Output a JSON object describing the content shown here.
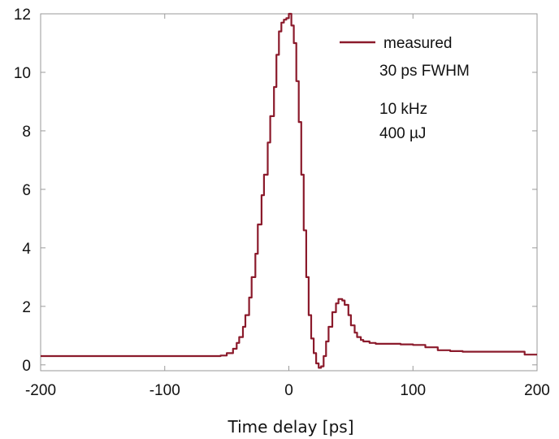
{
  "chart_data": {
    "type": "line",
    "xlabel": "Time delay [ps]",
    "ylabel": "",
    "xlim": [
      -200,
      200
    ],
    "ylim": [
      -0.2,
      12
    ],
    "xticks": [
      -200,
      -100,
      0,
      100,
      200
    ],
    "yticks": [
      0,
      2,
      4,
      6,
      8,
      10,
      12
    ],
    "grid": false,
    "legend_position": "top-right",
    "line_color": "#8B1A2B",
    "annotations": [
      "30 ps FWHM",
      "10 kHz",
      "400 µJ"
    ],
    "series": [
      {
        "name": "measured",
        "x": [
          -200,
          -150,
          -100,
          -70,
          -60,
          -55,
          -50,
          -45,
          -42,
          -40,
          -37,
          -35,
          -32,
          -30,
          -27,
          -25,
          -22,
          -20,
          -17,
          -15,
          -12,
          -10,
          -8,
          -6,
          -4,
          -2,
          0,
          2,
          4,
          6,
          8,
          10,
          12,
          14,
          16,
          18,
          20,
          22,
          24,
          26,
          28,
          30,
          32,
          35,
          38,
          40,
          43,
          45,
          48,
          50,
          53,
          55,
          58,
          60,
          65,
          70,
          75,
          80,
          90,
          100,
          110,
          120,
          130,
          140,
          145,
          150,
          160,
          170,
          180,
          190,
          195,
          200
        ],
        "y": [
          0.3,
          0.3,
          0.3,
          0.3,
          0.3,
          0.32,
          0.4,
          0.55,
          0.75,
          0.95,
          1.3,
          1.7,
          2.3,
          3.0,
          3.8,
          4.8,
          5.8,
          6.5,
          7.6,
          8.5,
          9.5,
          10.6,
          11.4,
          11.7,
          11.8,
          11.85,
          12.0,
          11.6,
          11.0,
          9.7,
          8.3,
          6.5,
          4.6,
          3.0,
          1.7,
          0.9,
          0.4,
          0.05,
          -0.1,
          -0.05,
          0.3,
          0.8,
          1.3,
          1.8,
          2.1,
          2.25,
          2.2,
          2.05,
          1.7,
          1.35,
          1.1,
          0.95,
          0.85,
          0.8,
          0.75,
          0.72,
          0.72,
          0.72,
          0.7,
          0.68,
          0.6,
          0.5,
          0.47,
          0.45,
          0.45,
          0.45,
          0.45,
          0.45,
          0.45,
          0.35,
          0.35,
          0.35
        ]
      }
    ]
  }
}
